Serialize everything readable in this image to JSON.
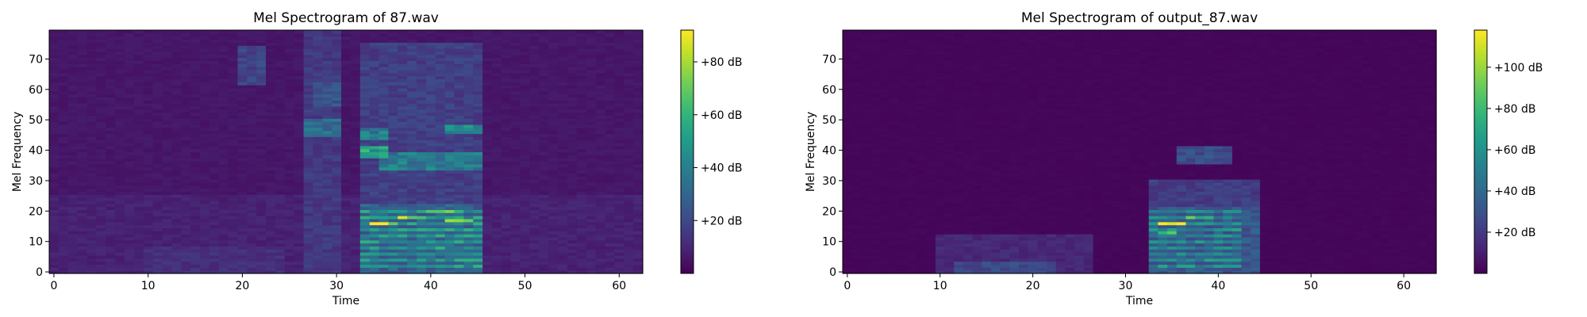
{
  "chart_data": [
    {
      "type": "heatmap",
      "title": "Mel Spectrogram of 87.wav",
      "xlabel": "Time",
      "ylabel": "Mel Frequency",
      "xlim": [
        -0.5,
        62.5
      ],
      "ylim": [
        -0.5,
        79.5
      ],
      "xticks": [
        0,
        10,
        20,
        30,
        40,
        50,
        60
      ],
      "yticks": [
        0,
        10,
        20,
        30,
        40,
        50,
        60,
        70
      ],
      "colormap": "viridis",
      "colorbar": {
        "range_db": [
          0,
          92
        ],
        "ticks": [
          20,
          40,
          60,
          80
        ],
        "tick_labels": [
          "+20 dB",
          "+40 dB",
          "+60 dB",
          "+80 dB"
        ]
      },
      "grid": false,
      "regions": [
        {
          "t": [
            0,
            62
          ],
          "f": [
            0,
            79
          ],
          "db": 6
        },
        {
          "t": [
            0,
            62
          ],
          "f": [
            0,
            25
          ],
          "db": 9
        },
        {
          "t": [
            10,
            24
          ],
          "f": [
            0,
            8
          ],
          "db": 13
        },
        {
          "t": [
            20,
            22
          ],
          "f": [
            62,
            74
          ],
          "db": 20
        },
        {
          "t": [
            27,
            30
          ],
          "f": [
            0,
            79
          ],
          "db": 16
        },
        {
          "t": [
            27,
            30
          ],
          "f": [
            45,
            50
          ],
          "db": 34
        },
        {
          "t": [
            28,
            30
          ],
          "f": [
            55,
            62
          ],
          "db": 26
        },
        {
          "t": [
            33,
            45
          ],
          "f": [
            0,
            75
          ],
          "db": 18
        },
        {
          "t": [
            33,
            45
          ],
          "f": [
            0,
            22
          ],
          "db": 30
        },
        {
          "t": [
            33,
            35
          ],
          "f": [
            38,
            41
          ],
          "db": 55
        },
        {
          "t": [
            35,
            45
          ],
          "f": [
            34,
            39
          ],
          "db": 40
        },
        {
          "t": [
            42,
            45
          ],
          "f": [
            46,
            48
          ],
          "db": 45
        },
        {
          "t": [
            33,
            35
          ],
          "f": [
            44,
            47
          ],
          "db": 42
        }
      ],
      "harmonics": {
        "t": [
          33,
          45
        ],
        "f": [
          2,
          21
        ],
        "step": 2,
        "db": 50
      },
      "peaks": [
        {
          "t": [
            34,
            36
          ],
          "f": [
            16,
            16
          ],
          "db": 92
        },
        {
          "t": [
            37,
            39
          ],
          "f": [
            18,
            18
          ],
          "db": 78
        },
        {
          "t": [
            42,
            44
          ],
          "f": [
            17,
            17
          ],
          "db": 80
        },
        {
          "t": [
            40,
            42
          ],
          "f": [
            20,
            20
          ],
          "db": 62
        }
      ]
    },
    {
      "type": "heatmap",
      "title": "Mel Spectrogram of output_87.wav",
      "xlabel": "Time",
      "ylabel": "Mel Frequency",
      "xlim": [
        -0.5,
        63.5
      ],
      "ylim": [
        -0.5,
        79.5
      ],
      "xticks": [
        0,
        10,
        20,
        30,
        40,
        50,
        60
      ],
      "yticks": [
        0,
        10,
        20,
        30,
        40,
        50,
        60,
        70
      ],
      "colormap": "viridis",
      "colorbar": {
        "range_db": [
          0,
          118
        ],
        "ticks": [
          20,
          40,
          60,
          80,
          100
        ],
        "tick_labels": [
          "+20 dB",
          "+40 dB",
          "+60 dB",
          "+80 dB",
          "+100 dB"
        ]
      },
      "grid": false,
      "regions": [
        {
          "t": [
            0,
            63
          ],
          "f": [
            0,
            79
          ],
          "db": 2
        },
        {
          "t": [
            10,
            26
          ],
          "f": [
            0,
            12
          ],
          "db": 14
        },
        {
          "t": [
            12,
            22
          ],
          "f": [
            0,
            3
          ],
          "db": 28
        },
        {
          "t": [
            33,
            44
          ],
          "f": [
            0,
            30
          ],
          "db": 22
        },
        {
          "t": [
            33,
            44
          ],
          "f": [
            0,
            21
          ],
          "db": 34
        },
        {
          "t": [
            36,
            41
          ],
          "f": [
            36,
            41
          ],
          "db": 30
        }
      ],
      "harmonics": {
        "t": [
          33,
          42
        ],
        "f": [
          2,
          21
        ],
        "step": 2,
        "db": 58
      },
      "peaks": [
        {
          "t": [
            34,
            36
          ],
          "f": [
            16,
            16
          ],
          "db": 118
        },
        {
          "t": [
            34,
            35
          ],
          "f": [
            13,
            13
          ],
          "db": 100
        },
        {
          "t": [
            37,
            39
          ],
          "f": [
            18,
            18
          ],
          "db": 88
        }
      ]
    }
  ]
}
